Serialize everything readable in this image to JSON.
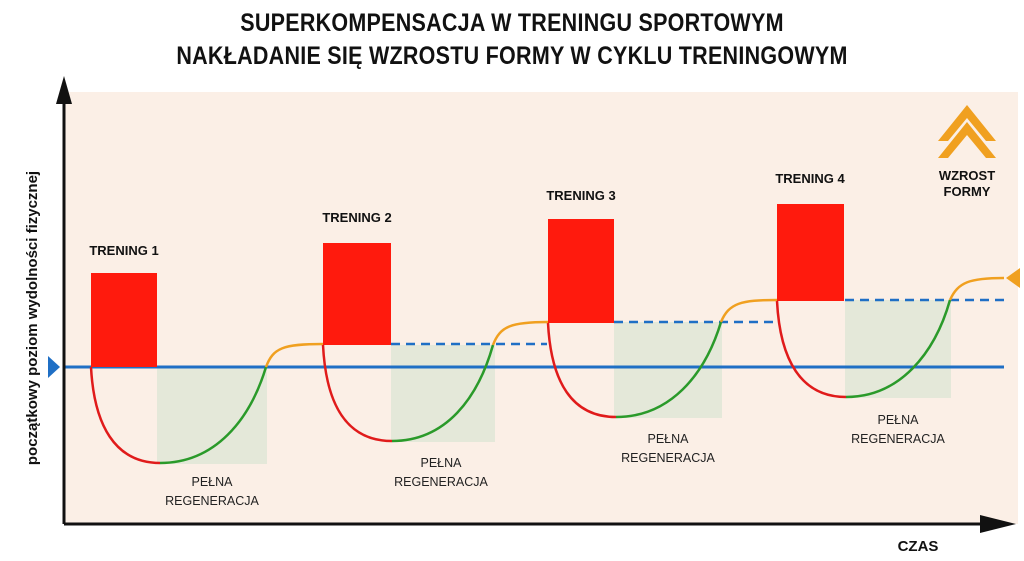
{
  "title": {
    "line1": "SUPERKOMPENSACJA W TRENINGU SPORTOWYM",
    "line2": "NAKŁADANIE SIĘ WZROSTU FORMY W CYKLU TRENINGOWYM"
  },
  "axes": {
    "y_label": "początkowy poziom wydolności fizycznej",
    "x_label": "CZAS"
  },
  "trainings": [
    {
      "label": "TRENING 1",
      "recovery_line1": "PEŁNA",
      "recovery_line2": "REGENERACJA"
    },
    {
      "label": "TRENING 2",
      "recovery_line1": "PEŁNA",
      "recovery_line2": "REGENERACJA"
    },
    {
      "label": "TRENING 3",
      "recovery_line1": "PEŁNA",
      "recovery_line2": "REGENERACJA"
    },
    {
      "label": "TRENING 4",
      "recovery_line1": "PEŁNA",
      "recovery_line2": "REGENERACJA"
    }
  ],
  "form_growth": {
    "line1": "WZROST",
    "line2": "FORMY",
    "icon": "double-chevron-up-icon"
  },
  "colors": {
    "background_panel": "#fbefe6",
    "training_block": "#ff1a0d",
    "recovery_block": "#e4e8d9",
    "baseline": "#1f6fc5",
    "fatigue_curve": "#e01b1b",
    "recovery_curve": "#2a9a2a",
    "supercompensation_curve": "#f0a020",
    "form_icon": "#f0a020"
  }
}
